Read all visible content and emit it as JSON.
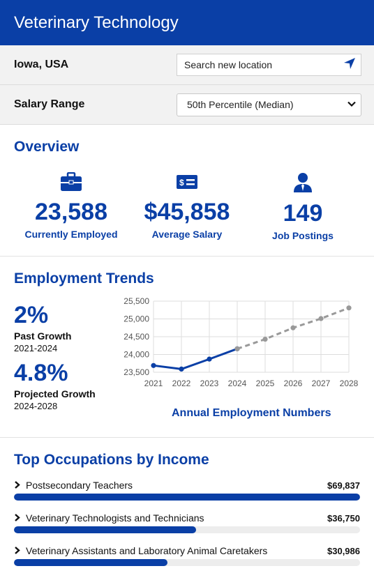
{
  "header": {
    "title": "Veterinary Technology"
  },
  "location": {
    "label": "Iowa, USA",
    "placeholder": "Search new location",
    "icon": "location-arrow-icon"
  },
  "salary_range": {
    "label": "Salary Range",
    "selected": "50th Percentile (Median)"
  },
  "overview": {
    "title": "Overview",
    "stats": [
      {
        "icon": "briefcase-icon",
        "value": "23,588",
        "caption": "Currently Employed"
      },
      {
        "icon": "money-bill-icon",
        "value": "$45,858",
        "caption": "Average Salary"
      },
      {
        "icon": "person-tie-icon",
        "value": "149",
        "caption": "Job Postings"
      }
    ]
  },
  "trends": {
    "title": "Employment Trends",
    "past": {
      "value": "2%",
      "label": "Past Growth",
      "years": "2021-2024"
    },
    "projected": {
      "value": "4.8%",
      "label": "Projected Growth",
      "years": "2024-2028"
    },
    "chart_title": "Annual Employment Numbers"
  },
  "chart_data": {
    "type": "line",
    "title": "Annual Employment Numbers",
    "x": [
      2021,
      2022,
      2023,
      2024,
      2025,
      2026,
      2027,
      2028
    ],
    "series": [
      {
        "values": [
          23690,
          23590,
          23870,
          24160,
          null,
          null,
          null,
          null
        ],
        "style": "solid",
        "color": "#0a3fa6"
      },
      {
        "values": [
          null,
          null,
          null,
          24160,
          24430,
          24750,
          25010,
          25310
        ],
        "style": "dashed",
        "color": "#999999"
      }
    ],
    "ylim": [
      23500,
      25500
    ],
    "yticks": [
      "23,500",
      "24,000",
      "24,500",
      "25,000",
      "25,500"
    ],
    "xticks": [
      "2021",
      "2022",
      "2023",
      "2024",
      "2025",
      "2026",
      "2027",
      "2028"
    ],
    "grid": true
  },
  "occupations": {
    "title": "Top Occupations by Income",
    "items": [
      {
        "name": "Postsecondary Teachers",
        "salary": "$69,837",
        "fraction": 1.0
      },
      {
        "name": "Veterinary Technologists and Technicians",
        "salary": "$36,750",
        "fraction": 0.526
      },
      {
        "name": "Veterinary Assistants and Laboratory Animal Caretakers",
        "salary": "$30,986",
        "fraction": 0.444
      }
    ]
  }
}
